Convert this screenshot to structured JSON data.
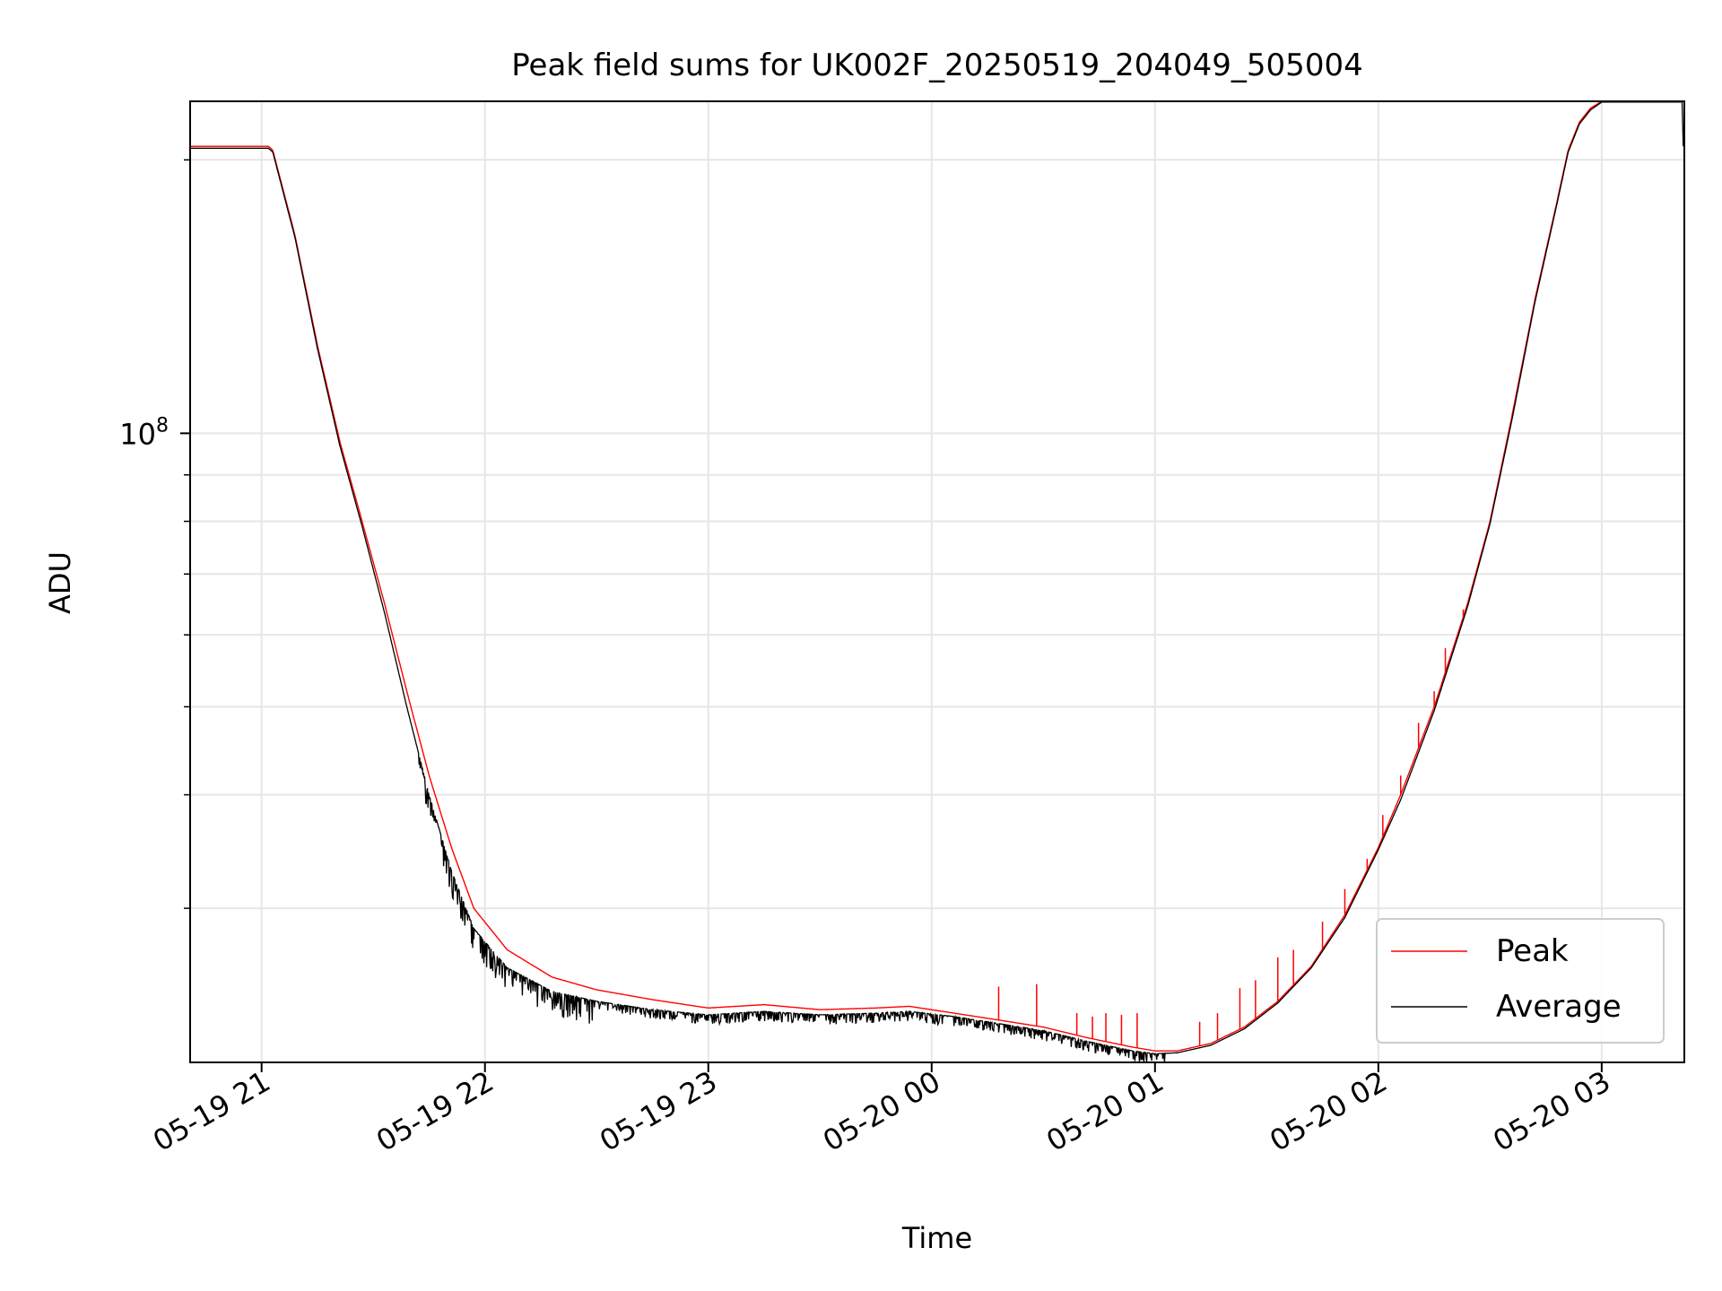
{
  "chart_data": {
    "type": "line",
    "title": "Peak field sums for UK002F_20250519_204049_505004",
    "xlabel": "Time",
    "ylabel": "ADU",
    "x_tick_labels": [
      "05-19 21",
      "05-19 22",
      "05-19 23",
      "05-20 00",
      "05-20 01",
      "05-20 02",
      "05-20 03"
    ],
    "x_ticks_hours": [
      21,
      22,
      23,
      24,
      25,
      26,
      27
    ],
    "xlim_hours": [
      20.68,
      27.37
    ],
    "y_scale": "log",
    "ylim": [
      20300000,
      232000000
    ],
    "y_major_tick_labels": [
      {
        "value": 100000000,
        "base": "10",
        "exponent": "8"
      }
    ],
    "y_minor_ticks": [
      20000000,
      30000000,
      40000000,
      50000000,
      60000000,
      70000000,
      80000000,
      90000000,
      200000000
    ],
    "grid": true,
    "legend": {
      "position": "bottom-right",
      "entries": [
        {
          "label": "Peak",
          "color": "#ff0000"
        },
        {
          "label": "Average",
          "color": "#000000"
        }
      ]
    },
    "series": [
      {
        "name": "Peak",
        "color": "#ff0000",
        "x_hours": [
          20.68,
          21.03,
          21.05,
          21.15,
          21.25,
          21.35,
          21.45,
          21.55,
          21.65,
          21.75,
          21.85,
          21.95,
          22.1,
          22.3,
          22.5,
          22.75,
          23.0,
          23.25,
          23.5,
          23.75,
          23.9,
          24.1,
          24.3,
          24.5,
          24.7,
          24.9,
          25.0,
          25.1,
          25.25,
          25.4,
          25.55,
          25.7,
          25.85,
          26.0,
          26.1,
          26.25,
          26.4,
          26.5,
          26.6,
          26.7,
          26.8,
          26.85,
          26.9,
          26.95,
          27.0,
          27.1,
          27.2,
          27.36
        ],
        "y": [
          207000000,
          207000000,
          205000000,
          165000000,
          125000000,
          98000000,
          80000000,
          65000000,
          52000000,
          42000000,
          35000000,
          30000000,
          27000000,
          25200000,
          24400000,
          23800000,
          23300000,
          23500000,
          23200000,
          23300000,
          23400000,
          23000000,
          22600000,
          22200000,
          21600000,
          21100000,
          20900000,
          20900000,
          21300000,
          22200000,
          23700000,
          25900000,
          29500000,
          35000000,
          40000000,
          50000000,
          65000000,
          80000000,
          105000000,
          140000000,
          180000000,
          205000000,
          220000000,
          228000000,
          232000000,
          232000000,
          232000000,
          232000000
        ],
        "spikes": [
          [
            24.3,
            24.6
          ],
          [
            24.47,
            24.75
          ],
          [
            24.65,
            23.0
          ],
          [
            24.72,
            22.8
          ],
          [
            24.78,
            23.0
          ],
          [
            24.85,
            22.9
          ],
          [
            24.92,
            23.0
          ],
          [
            25.2,
            22.5
          ],
          [
            25.28,
            23.0
          ],
          [
            25.38,
            24.5
          ],
          [
            25.45,
            25.0
          ],
          [
            25.55,
            26.5
          ],
          [
            25.62,
            27.0
          ],
          [
            25.75,
            29.0
          ],
          [
            25.85,
            31.5
          ],
          [
            25.95,
            34.0
          ],
          [
            26.02,
            38.0
          ],
          [
            26.1,
            42.0
          ],
          [
            26.18,
            48.0
          ],
          [
            26.25,
            52.0
          ],
          [
            26.3,
            58.0
          ],
          [
            26.38,
            64.0
          ]
        ]
      },
      {
        "name": "Average",
        "color": "#000000",
        "x_hours": [
          20.68,
          21.03,
          21.05,
          21.15,
          21.25,
          21.35,
          21.45,
          21.55,
          21.65,
          21.75,
          21.85,
          21.95,
          22.1,
          22.3,
          22.5,
          22.75,
          23.0,
          23.25,
          23.5,
          23.75,
          23.9,
          24.1,
          24.3,
          24.5,
          24.7,
          24.9,
          25.0,
          25.1,
          25.25,
          25.4,
          25.55,
          25.7,
          25.85,
          26.0,
          26.1,
          26.25,
          26.4,
          26.5,
          26.6,
          26.7,
          26.8,
          26.85,
          26.9,
          26.95,
          27.0,
          27.1,
          27.2,
          27.36
        ],
        "y": [
          206000000,
          206000000,
          204000000,
          164000000,
          124000000,
          97000000,
          79000000,
          63500000,
          50000000,
          40000000,
          33000000,
          28500000,
          25800000,
          24300000,
          23700000,
          23200000,
          22900000,
          23100000,
          22900000,
          23000000,
          23100000,
          22800000,
          22400000,
          22000000,
          21400000,
          20900000,
          20750000,
          20800000,
          21200000,
          22100000,
          23600000,
          25800000,
          29300000,
          34800000,
          39500000,
          49500000,
          64500000,
          79500000,
          104000000,
          139000000,
          179000000,
          204000000,
          219000000,
          227000000,
          231500000,
          231500000,
          231500000,
          231500000
        ]
      }
    ]
  }
}
